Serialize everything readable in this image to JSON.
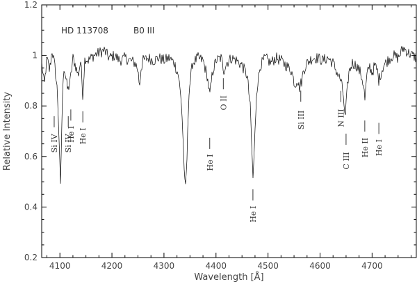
{
  "chart_data": {
    "type": "line",
    "star": {
      "name": "HD 113708",
      "spectral_type": "B0 III"
    },
    "xlabel": "Wavelength [Å]",
    "ylabel": "Relative Intensity",
    "xlim": [
      4065,
      4785
    ],
    "ylim": [
      0.2,
      1.2
    ],
    "x_ticks": [
      4100,
      4200,
      4300,
      4400,
      4500,
      4600,
      4700
    ],
    "y_ticks": [
      0.2,
      0.4,
      0.6,
      0.8,
      1.0,
      1.2
    ],
    "y_tick_labels": [
      "0.2",
      "0.4",
      "0.6",
      "0.8",
      "1",
      "1.2"
    ],
    "continuum": 1.0,
    "series": [
      {
        "x": [
          4065,
          4070,
          4075,
          4080,
          4085,
          4090,
          4095,
          4098,
          4101,
          4104,
          4107,
          4110,
          4115,
          4120,
          4125,
          4130,
          4135,
          4140,
          4144,
          4148,
          4155,
          4165,
          4175,
          4185,
          4195,
          4205,
          4215,
          4225,
          4235,
          4245,
          4250,
          4253,
          4256,
          4260,
          4270,
          4280,
          4290,
          4300,
          4310,
          4320,
          4328,
          4334,
          4338,
          4341,
          4344,
          4348,
          4355,
          4365,
          4375,
          4383,
          4388,
          4393,
          4400,
          4410,
          4415,
          4420,
          4430,
          4440,
          4450,
          4460,
          4466,
          4469,
          4471,
          4474,
          4478,
          4485,
          4495,
          4505,
          4515,
          4525,
          4535,
          4545,
          4552,
          4556,
          4560,
          4565,
          4568,
          4575,
          4585,
          4595,
          4605,
          4615,
          4625,
          4633,
          4640,
          4645,
          4648,
          4651,
          4655,
          4662,
          4670,
          4678,
          4684,
          4686,
          4690,
          4695,
          4700,
          4705,
          4710,
          4713,
          4717,
          4722,
          4730,
          4740,
          4750,
          4760,
          4770,
          4785
        ],
        "y": [
          0.97,
          0.88,
          0.99,
          0.94,
          1.02,
          0.96,
          0.86,
          0.7,
          0.47,
          0.76,
          0.96,
          0.93,
          0.86,
          0.9,
          0.99,
          0.96,
          0.92,
          0.98,
          0.84,
          0.99,
          0.98,
          1.0,
          1.01,
          1.02,
          0.99,
          1.0,
          0.98,
          0.99,
          0.98,
          0.97,
          0.94,
          0.88,
          0.95,
          0.98,
          0.99,
          0.98,
          0.99,
          0.98,
          0.99,
          0.97,
          0.92,
          0.8,
          0.6,
          0.45,
          0.58,
          0.86,
          0.97,
          0.99,
          0.98,
          0.92,
          0.84,
          0.93,
          0.98,
          0.99,
          0.94,
          0.97,
          0.99,
          0.98,
          0.96,
          0.92,
          0.79,
          0.62,
          0.51,
          0.64,
          0.86,
          0.96,
          0.99,
          0.97,
          0.99,
          0.98,
          0.96,
          0.94,
          0.88,
          0.91,
          0.87,
          0.9,
          0.94,
          0.97,
          0.99,
          0.99,
          0.98,
          0.99,
          0.97,
          0.93,
          0.9,
          0.84,
          0.74,
          0.83,
          0.93,
          0.97,
          0.96,
          0.93,
          0.88,
          0.82,
          0.92,
          0.96,
          0.93,
          0.96,
          0.94,
          0.9,
          0.93,
          0.96,
          0.98,
          1.0,
          0.99,
          1.03,
          1.01,
          0.99
        ]
      }
    ],
    "line_ids": [
      {
        "label": "Si IV",
        "wavelength": 4089,
        "y": 0.652
      },
      {
        "label": "Si IV",
        "wavelength": 4116,
        "y": 0.652
      },
      {
        "label": "He I",
        "wavelength": 4121,
        "y": 0.688
      },
      {
        "label": "He I",
        "wavelength": 4144,
        "y": 0.681
      },
      {
        "label": "He I",
        "wavelength": 4388,
        "y": 0.576
      },
      {
        "label": "O II",
        "wavelength": 4414,
        "y": 0.812
      },
      {
        "label": "He I",
        "wavelength": 4471,
        "y": 0.372
      },
      {
        "label": "Si III",
        "wavelength": 4563,
        "y": 0.744
      },
      {
        "label": "N III",
        "wavelength": 4640,
        "y": 0.752
      },
      {
        "label": "C III",
        "wavelength": 4650,
        "y": 0.583
      },
      {
        "label": "He II",
        "wavelength": 4686,
        "y": 0.635
      },
      {
        "label": "He I",
        "wavelength": 4713,
        "y": 0.635
      }
    ],
    "grid": false,
    "legend": "none"
  }
}
